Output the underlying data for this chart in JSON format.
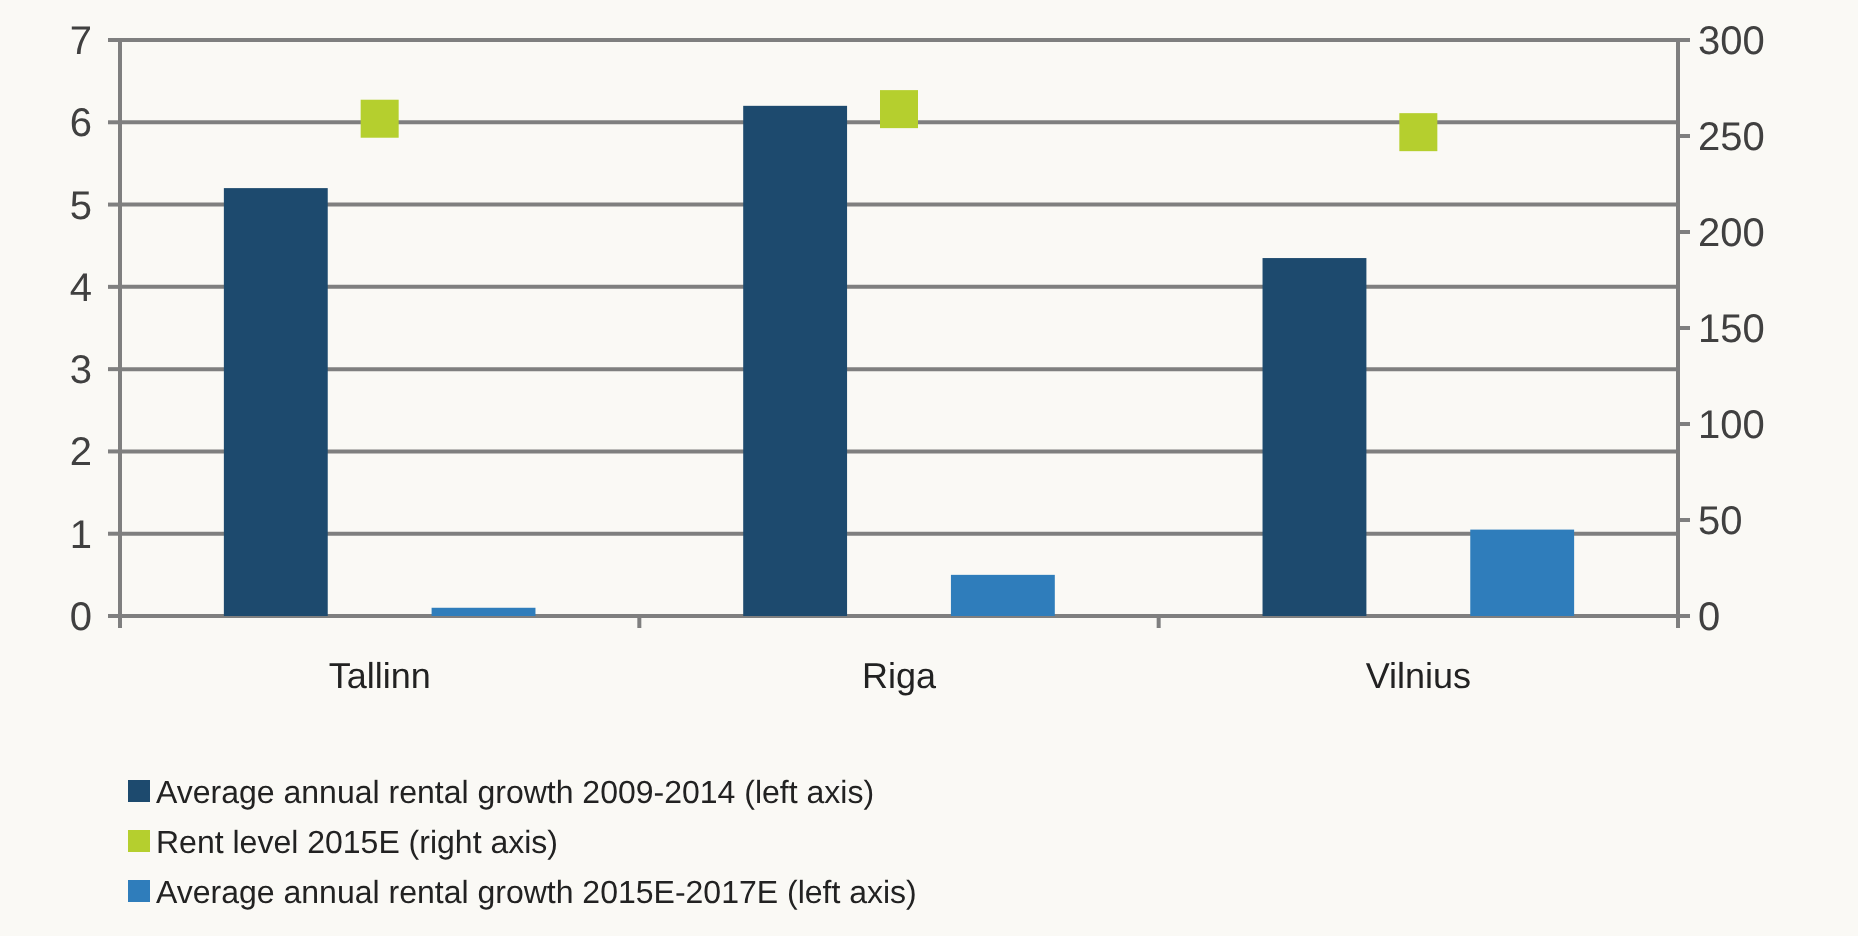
{
  "chart_data": {
    "type": "bar",
    "categories": [
      "Tallinn",
      "Riga",
      "Vilnius"
    ],
    "series": [
      {
        "name": "Average annual rental growth 2009-2014 (left axis)",
        "color": "#1d4a6e",
        "values": [
          5.2,
          6.2,
          4.35
        ]
      },
      {
        "name": "Rent level 2015E (right axis)",
        "color": "#b5cf2e",
        "values": [
          259,
          264,
          252
        ],
        "type": "scatter",
        "axis": "y2",
        "marker": "square"
      },
      {
        "name": "Average annual rental growth 2015E-2017E (left axis)",
        "color": "#2f7dbb",
        "values": [
          0.1,
          0.5,
          1.05
        ]
      }
    ],
    "ylim": [
      0,
      7
    ],
    "yticks": [
      0,
      1,
      2,
      3,
      4,
      5,
      6,
      7
    ],
    "y2lim": [
      0,
      300
    ],
    "y2ticks": [
      0,
      50,
      100,
      150,
      200,
      250,
      300
    ],
    "grid": "y",
    "legend": "bottom"
  }
}
